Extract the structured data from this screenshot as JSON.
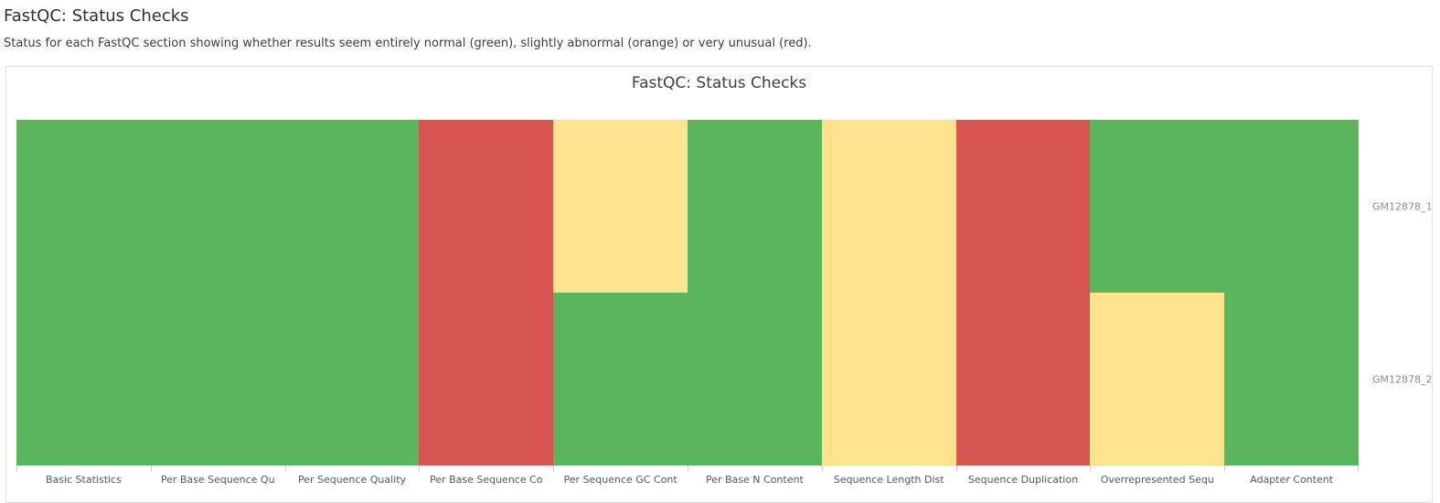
{
  "header": {
    "title": "FastQC: Status Checks",
    "description": "Status for each FastQC section showing whether results seem entirely normal (green), slightly abnormal (orange) or very unusual (red)."
  },
  "chart_data": {
    "type": "heatmap",
    "title": "FastQC: Status Checks",
    "x_categories": [
      "Basic Statistics",
      "Per Base Sequence Qu",
      "Per Sequence Quality",
      "Per Base Sequence Co",
      "Per Sequence GC Cont",
      "Per Base N Content",
      "Sequence Length Dist",
      "Sequence Duplication",
      "Overrepresented Sequ",
      "Adapter Content"
    ],
    "y_categories": [
      "GM12878_1",
      "GM12878_2"
    ],
    "status_colors": {
      "pass": "#5bb55c",
      "warn": "#fde38d",
      "fail": "#d65550"
    },
    "rows": [
      {
        "sample": "GM12878_1",
        "statuses": [
          "pass",
          "pass",
          "pass",
          "fail",
          "warn",
          "pass",
          "warn",
          "fail",
          "pass",
          "pass"
        ]
      },
      {
        "sample": "GM12878_2",
        "statuses": [
          "pass",
          "pass",
          "pass",
          "fail",
          "pass",
          "pass",
          "warn",
          "fail",
          "warn",
          "pass"
        ]
      }
    ],
    "legend": "none",
    "grid": false,
    "xlabel": "",
    "ylabel": ""
  }
}
